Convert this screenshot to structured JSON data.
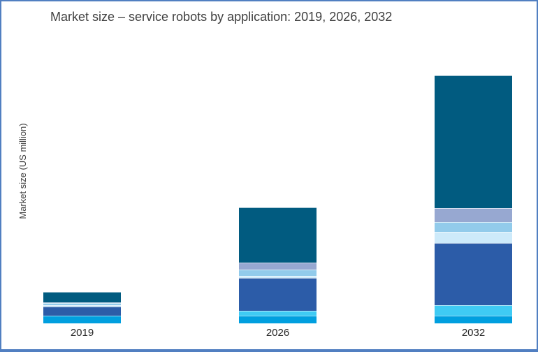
{
  "window": {
    "background": "#FFFFFF",
    "border_color": "#517FC1"
  },
  "title": "Market size – service robots by application: 2019, 2026, 2032",
  "y_axis": {
    "label": "Market size (US million)"
  },
  "x_axis": {
    "labels": [
      "2019",
      "2026",
      "2032"
    ]
  },
  "chart_data": {
    "type": "bar",
    "stacked": true,
    "title": "Market size – service robots by application: 2019, 2026, 2032",
    "xlabel": "",
    "ylabel": "Market size (US million)",
    "categories": [
      "2019",
      "2026",
      "2032"
    ],
    "axis_numbers_shown": false,
    "legend": "none",
    "grid": false,
    "units_note": "relative units (estimated from segment heights; chart shows no numeric scale or legend labels)",
    "series": [
      {
        "name": "segment-1-cyan",
        "color": "#009FDF",
        "values": [
          11,
          11,
          11
        ]
      },
      {
        "name": "segment-2-bright-cyan",
        "color": "#3FCBF4",
        "values": [
          0,
          7,
          15
        ]
      },
      {
        "name": "segment-3-royal-blue",
        "color": "#2C5CA8",
        "values": [
          13,
          47,
          89
        ]
      },
      {
        "name": "segment-4-pale-blue",
        "color": "#CDEAFA",
        "values": [
          2,
          3,
          16
        ]
      },
      {
        "name": "segment-5-sky-blue",
        "color": "#92CBEB",
        "values": [
          3,
          9,
          14
        ]
      },
      {
        "name": "segment-6-periwinkle",
        "color": "#97A8D1",
        "values": [
          1,
          10,
          20
        ]
      },
      {
        "name": "segment-7-dark-teal",
        "color": "#015B80",
        "values": [
          15,
          79,
          190
        ]
      }
    ],
    "totals": [
      45,
      166,
      355
    ]
  }
}
